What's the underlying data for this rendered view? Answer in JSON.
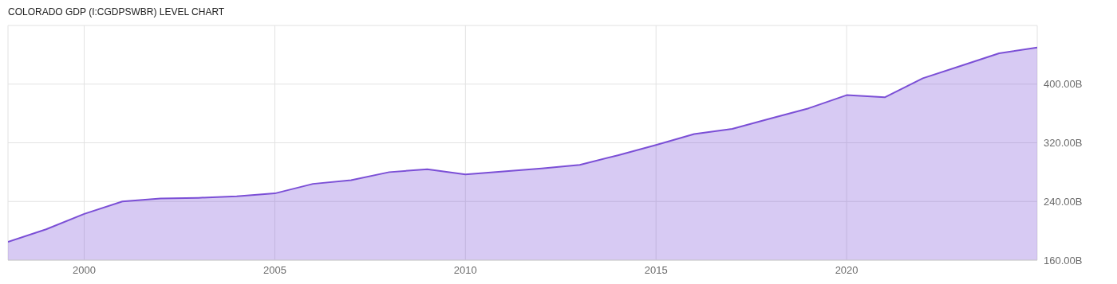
{
  "chart_data": {
    "type": "area",
    "title": "COLORADO GDP (I:CGDPSWBR) LEVEL CHART",
    "x": [
      1998,
      1999,
      2000,
      2001,
      2002,
      2003,
      2004,
      2005,
      2006,
      2007,
      2008,
      2009,
      2010,
      2011,
      2012,
      2013,
      2014,
      2015,
      2016,
      2017,
      2018,
      2019,
      2020,
      2021,
      2022,
      2023,
      2024,
      2025
    ],
    "series": [
      {
        "color": "#7b4fd6",
        "values": [
          185,
          202,
          223,
          240,
          244,
          245,
          247,
          251,
          264,
          269,
          280,
          284,
          277,
          281,
          285,
          290,
          303,
          317,
          332,
          339,
          353,
          367,
          385,
          382,
          408,
          425,
          442,
          450
        ]
      }
    ],
    "xlim": [
      1998,
      2025
    ],
    "xticks": [
      2000,
      2005,
      2010,
      2015,
      2020
    ],
    "ylim": [
      160,
      480
    ],
    "yticks": [
      {
        "value": 160,
        "label": "160.00B"
      },
      {
        "value": 240,
        "label": "240.00B"
      },
      {
        "value": 320,
        "label": "320.00B"
      },
      {
        "value": 400,
        "label": "400.00B"
      }
    ],
    "grid": true,
    "legend": false,
    "marker": "none",
    "line_style": "solid"
  }
}
